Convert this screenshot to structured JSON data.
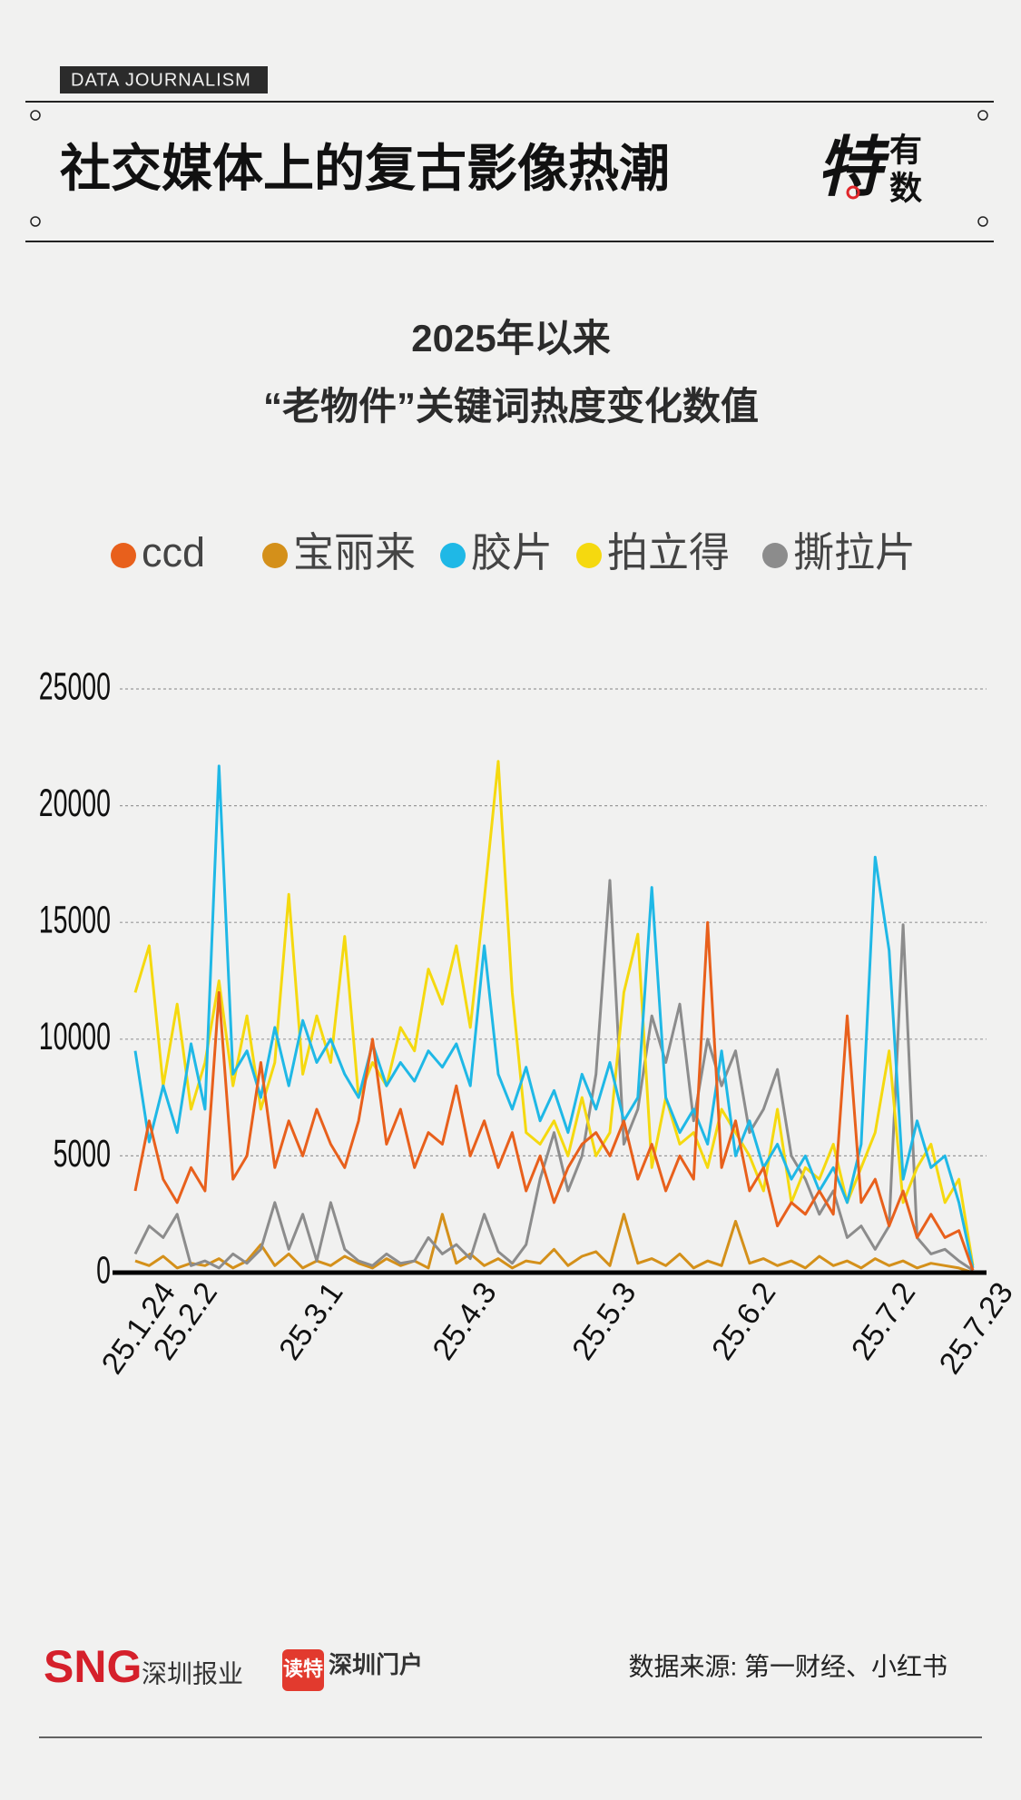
{
  "header": {
    "tag": "DATA JOURNALISM",
    "title": "社交媒体上的复古影像热潮",
    "logo": [
      "特",
      "有",
      "数"
    ]
  },
  "chart_data": {
    "type": "line",
    "title": "2025年以来",
    "subtitle": "“老物件”关键词热度变化数值",
    "categories": [
      "25.1.24",
      null,
      null,
      "25.2.2",
      null,
      null,
      null,
      null,
      null,
      null,
      null,
      null,
      "25.3.1",
      null,
      null,
      null,
      null,
      null,
      null,
      null,
      null,
      null,
      null,
      "25.4.3",
      null,
      null,
      null,
      null,
      null,
      null,
      null,
      null,
      null,
      "25.5.3",
      null,
      null,
      null,
      null,
      null,
      null,
      null,
      null,
      null,
      "25.6.2",
      null,
      null,
      null,
      null,
      null,
      null,
      null,
      null,
      null,
      "25.7.2",
      null,
      null,
      null,
      null,
      null,
      null,
      "25.7.23"
    ],
    "series": [
      {
        "name": "ccd",
        "color": "#e8601c",
        "values": [
          3500,
          6500,
          4000,
          3000,
          4500,
          3500,
          12000,
          4000,
          5000,
          9000,
          4500,
          6500,
          5000,
          7000,
          5500,
          4500,
          6500,
          10000,
          5500,
          7000,
          4500,
          6000,
          5500,
          8000,
          5000,
          6500,
          4500,
          6000,
          3500,
          5000,
          3000,
          4500,
          5500,
          6000,
          5000,
          6500,
          4000,
          5500,
          3500,
          5000,
          4000,
          15000,
          4500,
          6500,
          3500,
          4500,
          2000,
          3000,
          2500,
          3500,
          2500,
          11000,
          3000,
          4000,
          2000,
          3500,
          1500,
          2500,
          1500,
          1800,
          100
        ]
      },
      {
        "name": "宝丽来",
        "color": "#d4901a",
        "values": [
          500,
          300,
          700,
          200,
          400,
          300,
          600,
          200,
          500,
          1200,
          300,
          800,
          200,
          500,
          300,
          700,
          400,
          200,
          600,
          300,
          500,
          200,
          2500,
          400,
          800,
          300,
          600,
          200,
          500,
          400,
          1000,
          300,
          700,
          900,
          300,
          2500,
          400,
          600,
          300,
          800,
          200,
          500,
          300,
          2200,
          400,
          600,
          300,
          500,
          200,
          700,
          300,
          500,
          200,
          600,
          300,
          500,
          200,
          400,
          300,
          200,
          0
        ]
      },
      {
        "name": "胶片",
        "color": "#1fb8e6",
        "values": [
          9500,
          5600,
          8000,
          6000,
          9800,
          7000,
          21700,
          8500,
          9500,
          7500,
          10500,
          8000,
          10800,
          9000,
          10000,
          8500,
          7500,
          9800,
          8000,
          9000,
          8200,
          9500,
          8800,
          9800,
          8000,
          14000,
          8500,
          7000,
          8800,
          6500,
          7800,
          6000,
          8500,
          7000,
          9000,
          6500,
          7500,
          16500,
          7500,
          6000,
          7000,
          5500,
          9500,
          5000,
          6500,
          4500,
          5500,
          4000,
          5000,
          3500,
          4500,
          3000,
          5500,
          17800,
          13800,
          4000,
          6500,
          4500,
          5000,
          3000,
          200
        ]
      },
      {
        "name": "拍立得",
        "color": "#f5d90f",
        "values": [
          12000,
          14000,
          8000,
          11500,
          7000,
          9000,
          12500,
          8000,
          11000,
          7000,
          9000,
          16200,
          8500,
          11000,
          9000,
          14400,
          7500,
          9000,
          8000,
          10500,
          9500,
          13000,
          11500,
          14000,
          10500,
          16000,
          21900,
          12000,
          6000,
          5500,
          6500,
          5000,
          7500,
          5000,
          6000,
          12000,
          14500,
          4500,
          7500,
          5500,
          6000,
          4500,
          7000,
          6000,
          5000,
          3500,
          7000,
          3000,
          4500,
          4000,
          5500,
          3000,
          4500,
          6000,
          9500,
          3000,
          4500,
          5500,
          3000,
          4000,
          300
        ]
      },
      {
        "name": "撕拉片",
        "color": "#8c8c8c",
        "values": [
          800,
          2000,
          1500,
          2500,
          300,
          500,
          200,
          800,
          400,
          1000,
          3000,
          1000,
          2500,
          500,
          3000,
          1000,
          500,
          300,
          800,
          400,
          500,
          1500,
          800,
          1200,
          600,
          2500,
          900,
          400,
          1200,
          4000,
          6000,
          3500,
          5000,
          8500,
          16800,
          5500,
          7000,
          11000,
          9000,
          11500,
          6500,
          10000,
          8000,
          9500,
          6000,
          7000,
          8700,
          5000,
          4000,
          2500,
          3500,
          1500,
          2000,
          1000,
          2000,
          14900,
          1500,
          800,
          1000,
          500,
          100
        ]
      }
    ],
    "ylim": [
      0,
      25000
    ],
    "yticks": [
      0,
      5000,
      10000,
      15000,
      20000,
      25000
    ],
    "grid": true
  },
  "footer": {
    "brand": "SNG",
    "brand_name": "深圳报业",
    "app": "读特",
    "app_name": "深圳门户",
    "source": "数据来源: 第一财经、小红书"
  }
}
